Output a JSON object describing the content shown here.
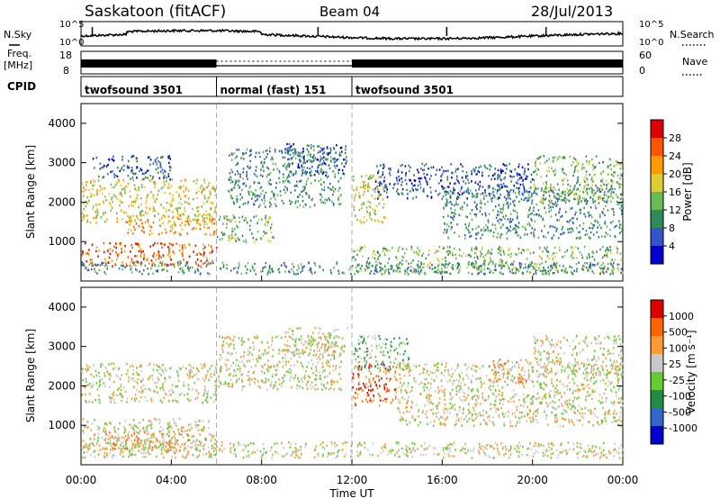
{
  "chart_data": {
    "type": "heatmap",
    "title": "Saskatoon (fitACF)",
    "beam": "Beam 04",
    "date": "28/Jul/2013",
    "xlabel": "Time UT",
    "x_ticks": [
      "00:00",
      "04:00",
      "08:00",
      "12:00",
      "16:00",
      "20:00",
      "00:00"
    ],
    "x_range_hours": [
      0,
      24
    ],
    "top_panels": {
      "nsky": {
        "label": "N.Sky",
        "ticks": [
          "10^5",
          "10^0"
        ]
      },
      "nsearch": {
        "label": "N.Search",
        "ticks": [
          "10^5",
          "10^0"
        ]
      },
      "freq": {
        "label_line1": "Freq.",
        "label_line2": "[MHz]",
        "ticks": [
          18,
          8
        ]
      },
      "nave": {
        "label": "Nave",
        "ticks": [
          60,
          0
        ]
      },
      "cpid": {
        "label": "CPID",
        "segments": [
          {
            "name": "twofsound 3501",
            "start_hour": 0,
            "end_hour": 6
          },
          {
            "name": "normal (fast) 151",
            "start_hour": 6,
            "end_hour": 12
          },
          {
            "name": "twofsound 3501",
            "start_hour": 12,
            "end_hour": 24
          }
        ]
      }
    },
    "power_panel": {
      "ylabel": "Slant Range [km]",
      "y_ticks": [
        1000,
        2000,
        3000,
        4000
      ],
      "colorbar_label": "Power [dB]",
      "colorbar_ticks": [
        "28",
        "24",
        "20",
        "16",
        "12",
        "8",
        "4"
      ],
      "colors": [
        "#0000cc",
        "#3355cc",
        "#2e8b57",
        "#66bb55",
        "#ddcc33",
        "#ff9900",
        "#ff5500",
        "#dd0000"
      ]
    },
    "velocity_panel": {
      "ylabel": "Slant Range [km]",
      "y_ticks": [
        1000,
        2000,
        3000,
        4000
      ],
      "colorbar_label": "Velocity [m s⁻¹]",
      "colorbar_ticks": [
        "1000",
        "500",
        "100",
        "25",
        "-25",
        "-100",
        "-500",
        "-1000"
      ],
      "colors": [
        "#0000cc",
        "#3366cc",
        "#228b44",
        "#66cc33",
        "#c8c8c8",
        "#ff9933",
        "#ff6600",
        "#dd0000"
      ]
    }
  }
}
